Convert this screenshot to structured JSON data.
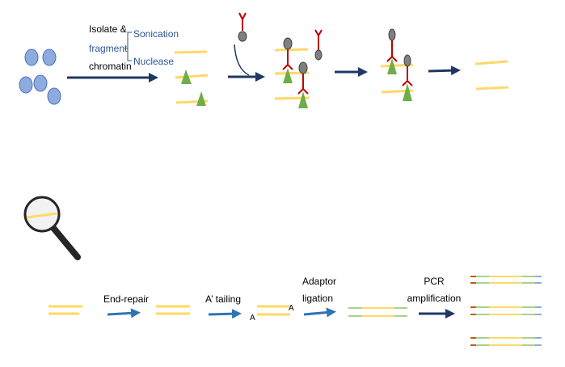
{
  "top_row": {
    "step1_line1": "Isolate &",
    "step1_line2": "fragment",
    "step1_line3": "chromatin",
    "method_1": "Sonication",
    "method_2": "Nuclease"
  },
  "bottom_row": {
    "end_repair": "End-repair",
    "a_tailing": "A’ tailing",
    "a_left": "A",
    "a_right": "A",
    "adaptor_line1": "Adaptor",
    "adaptor_line2": "ligation",
    "pcr_line1": "PCR",
    "pcr_line2": "amplification"
  },
  "colors": {
    "dna": "#ffd966",
    "adaptor_green": "#a9d18e",
    "adaptor_orange": "#c55a11",
    "adaptor_blue": "#8faadc",
    "antibody": "#c00000",
    "protein": "#70ad47",
    "cells": "#8faadc",
    "dark_arrow": "#1f3864",
    "light_arrow": "#2e75b6"
  }
}
